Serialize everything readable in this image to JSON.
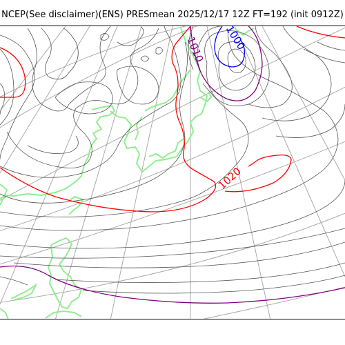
{
  "header": {
    "title": "NCEP(See disclaimer)(ENS) PRESmean 2025/12/17 12Z FT=192 (init 0912Z)"
  },
  "map": {
    "colors": {
      "graticule": "#aaaaaa",
      "coastline": "#90ee90",
      "isobar": "#555555",
      "isobar_1020": "#ff0000",
      "isobar_1010": "#800080",
      "isobar_1000": "#0000ff"
    },
    "contour_labels": {
      "c1000": "1000",
      "c1010": "1010",
      "c1020": "1020"
    }
  }
}
